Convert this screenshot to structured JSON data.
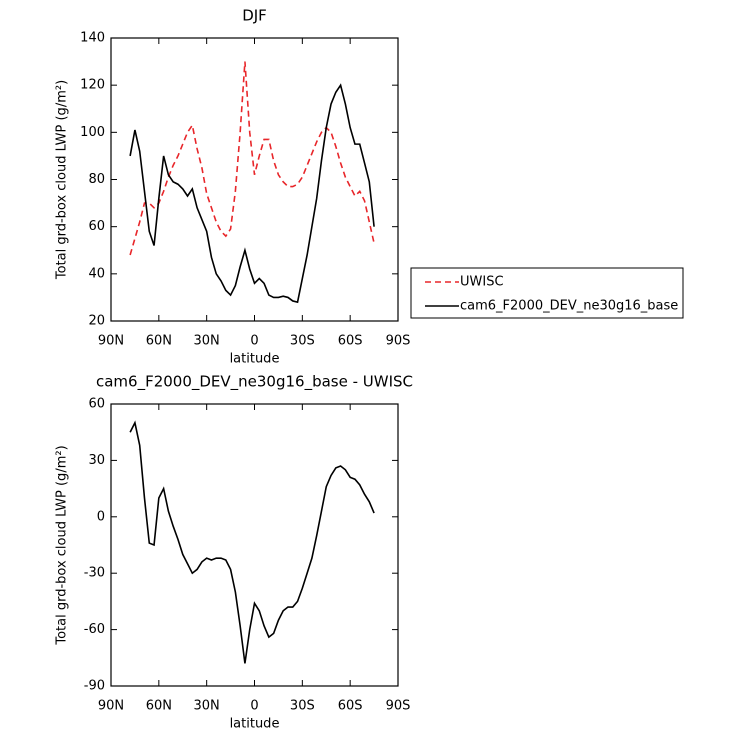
{
  "chart_data": [
    {
      "type": "line",
      "title": "DJF",
      "xlabel": "latitude",
      "ylabel": "Total grd-box cloud LWP (g/m²)",
      "x": [
        78,
        75,
        72,
        69,
        66,
        63,
        60,
        57,
        54,
        51,
        48,
        45,
        42,
        39,
        36,
        33,
        30,
        27,
        24,
        21,
        18,
        15,
        12,
        9,
        6,
        3,
        0,
        -3,
        -6,
        -9,
        -12,
        -15,
        -18,
        -21,
        -24,
        -27,
        -30,
        -33,
        -36,
        -39,
        -42,
        -45,
        -48,
        -51,
        -54,
        -57,
        -60,
        -63,
        -66,
        -69,
        -72,
        -75
      ],
      "xlim": [
        90,
        -90
      ],
      "xticks": [
        {
          "value": 90,
          "label": "90N"
        },
        {
          "value": 60,
          "label": "60N"
        },
        {
          "value": 30,
          "label": "30N"
        },
        0,
        {
          "value": -30,
          "label": "30S"
        },
        {
          "value": -60,
          "label": "60S"
        },
        {
          "value": -90,
          "label": "90S"
        }
      ],
      "ylim": [
        20,
        140
      ],
      "yticks": [
        20,
        40,
        60,
        80,
        100,
        120,
        140
      ],
      "legend": "outside-right",
      "series": [
        {
          "name": "UWISC",
          "color": "#e8262a",
          "dash": "dashed",
          "values": [
            48,
            55,
            62,
            70,
            70,
            68,
            70,
            75,
            81,
            86,
            90,
            95,
            100,
            103,
            93,
            85,
            74,
            68,
            62,
            58,
            56,
            59,
            75,
            100,
            130,
            100,
            82,
            90,
            97,
            97,
            88,
            82,
            79,
            77,
            77,
            78,
            81,
            86,
            91,
            96,
            100,
            102,
            100,
            94,
            87,
            81,
            77,
            73,
            75,
            71,
            62,
            53
          ]
        },
        {
          "name": "cam6_F2000_DEV_ne30g16_base",
          "color": "#000000",
          "dash": "solid",
          "values": [
            90,
            101,
            92,
            75,
            58,
            52,
            72,
            90,
            82,
            79,
            78,
            76,
            73,
            76,
            68,
            63,
            58,
            47,
            40,
            37,
            33,
            31,
            35,
            43,
            50,
            42,
            36,
            38,
            36,
            31,
            30,
            30,
            30.5,
            30,
            28.5,
            28,
            38,
            48,
            60,
            72,
            88,
            102,
            112,
            117,
            120,
            112,
            102,
            95,
            95,
            87,
            79,
            60
          ]
        }
      ]
    },
    {
      "type": "line",
      "title": "cam6_F2000_DEV_ne30g16_base - UWISC",
      "xlabel": "latitude",
      "ylabel": "Total grd-box cloud LWP (g/m²)",
      "x": [
        78,
        75,
        72,
        69,
        66,
        63,
        60,
        57,
        54,
        51,
        48,
        45,
        42,
        39,
        36,
        33,
        30,
        27,
        24,
        21,
        18,
        15,
        12,
        9,
        6,
        3,
        0,
        -3,
        -6,
        -9,
        -12,
        -15,
        -18,
        -21,
        -24,
        -27,
        -30,
        -33,
        -36,
        -39,
        -42,
        -45,
        -48,
        -51,
        -54,
        -57,
        -60,
        -63,
        -66,
        -69,
        -72,
        -75
      ],
      "xlim": [
        90,
        -90
      ],
      "xticks": [
        {
          "value": 90,
          "label": "90N"
        },
        {
          "value": 60,
          "label": "60N"
        },
        {
          "value": 30,
          "label": "30N"
        },
        0,
        {
          "value": -30,
          "label": "30S"
        },
        {
          "value": -60,
          "label": "60S"
        },
        {
          "value": -90,
          "label": "90S"
        }
      ],
      "ylim": [
        -90,
        60
      ],
      "yticks": [
        -90,
        -60,
        -30,
        0,
        30,
        60
      ],
      "series": [
        {
          "color": "#000000",
          "dash": "solid",
          "values": [
            45,
            50,
            38,
            10,
            -14,
            -15,
            10,
            15,
            3,
            -5,
            -12,
            -20,
            -25,
            -30,
            -28,
            -24,
            -22,
            -23,
            -22,
            -22,
            -23,
            -28,
            -40,
            -58,
            -78,
            -60,
            -46,
            -50,
            -58,
            -64,
            -62,
            -55,
            -50,
            -48,
            -48,
            -45,
            -38,
            -30,
            -22,
            -10,
            3,
            16,
            22,
            26,
            27,
            25,
            21,
            20,
            17,
            12,
            8,
            2
          ]
        }
      ]
    }
  ]
}
